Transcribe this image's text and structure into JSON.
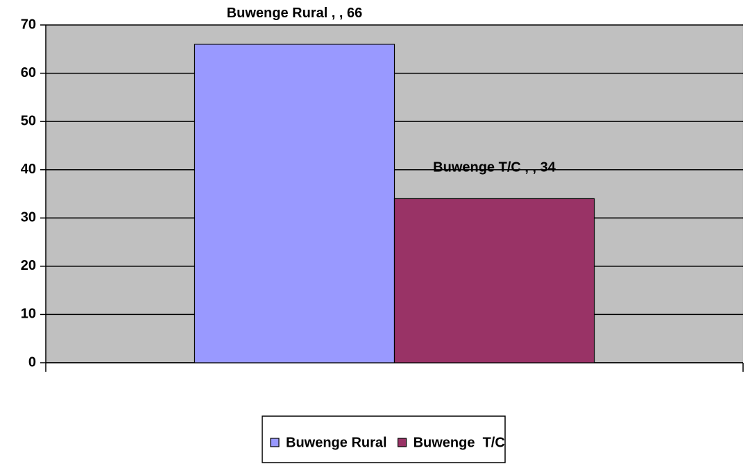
{
  "chart_data": {
    "type": "bar",
    "categories": [
      null
    ],
    "series": [
      {
        "name": "Buwenge Rural",
        "color": "#9999ff",
        "values": [
          66
        ],
        "value_labels": [
          "Buwenge Rural , , 66"
        ]
      },
      {
        "name": "Buwenge  T/C",
        "color": "#993366",
        "values": [
          34
        ],
        "value_labels": [
          "Buwenge  T/C , , 34"
        ]
      }
    ],
    "ylim": [
      0,
      70
    ],
    "yticks": [
      0,
      10,
      20,
      30,
      40,
      50,
      60,
      70
    ],
    "grid": true,
    "legend": "bottom",
    "plot_background": "#c0c0c0"
  }
}
